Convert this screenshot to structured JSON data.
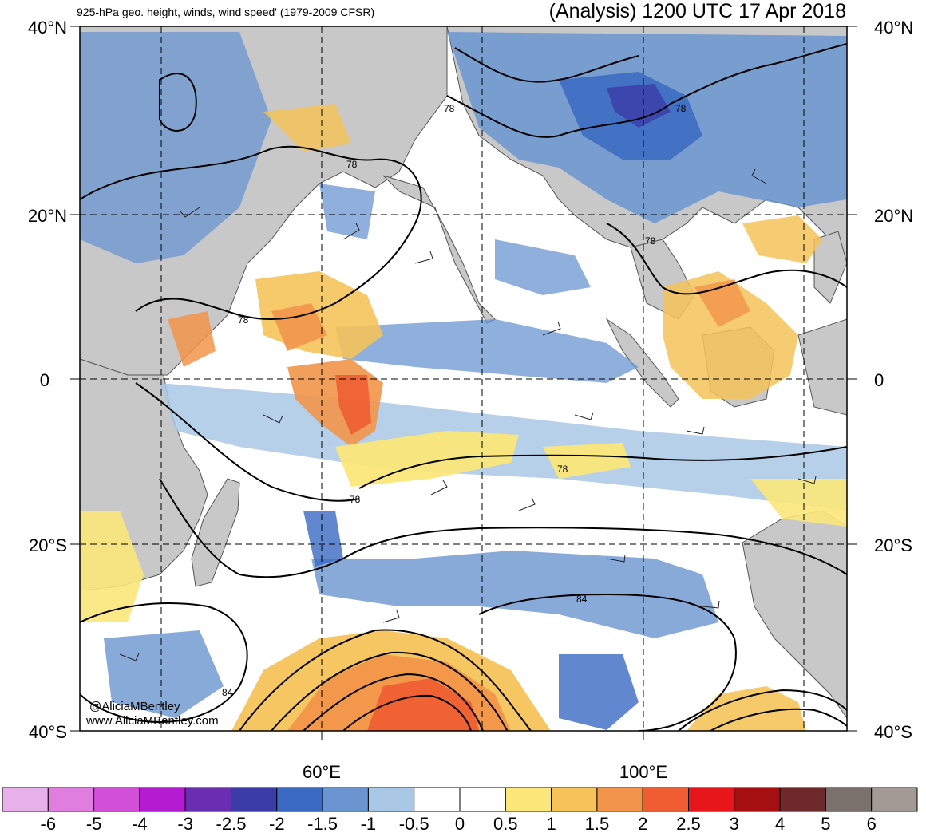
{
  "header": {
    "left_title": "925-hPa geo. height, winds, wind speed' (1979-2009 CFSR)",
    "right_title": "(Analysis) 1200 UTC 17 Apr 2018"
  },
  "map": {
    "lat_labels": [
      "40°N",
      "20°N",
      "0",
      "20°S",
      "40°S"
    ],
    "lon_labels": [
      "60°E",
      "100°E"
    ],
    "contour_labels": [
      "78",
      "78",
      "78",
      "78",
      "78",
      "78",
      "78",
      "84",
      "84"
    ],
    "land_color": "#c8c8c8",
    "coast_color": "#555555"
  },
  "credit": {
    "handle": "@AliciaMBentley",
    "site": "www.AliciaMBentley.com"
  },
  "colorbar": {
    "levels": [
      "-6",
      "-5",
      "-4",
      "-3",
      "-2.5",
      "-2",
      "-1.5",
      "-1",
      "-0.5",
      "0",
      "0.5",
      "1",
      "1.5",
      "2",
      "2.5",
      "3",
      "4",
      "5",
      "6"
    ],
    "colors": [
      "#e8b0e8",
      "#e07ee0",
      "#d24fd8",
      "#b31cd0",
      "#6a2eb0",
      "#3c3ca8",
      "#3a6ac2",
      "#6a95d0",
      "#a9c8e6",
      "#ffffff",
      "#ffffff",
      "#fbe77a",
      "#f5c35a",
      "#f2954a",
      "#ef5e32",
      "#e6161a",
      "#a50f12",
      "#6e2a2a",
      "#7a706c",
      "#a39a96"
    ]
  }
}
